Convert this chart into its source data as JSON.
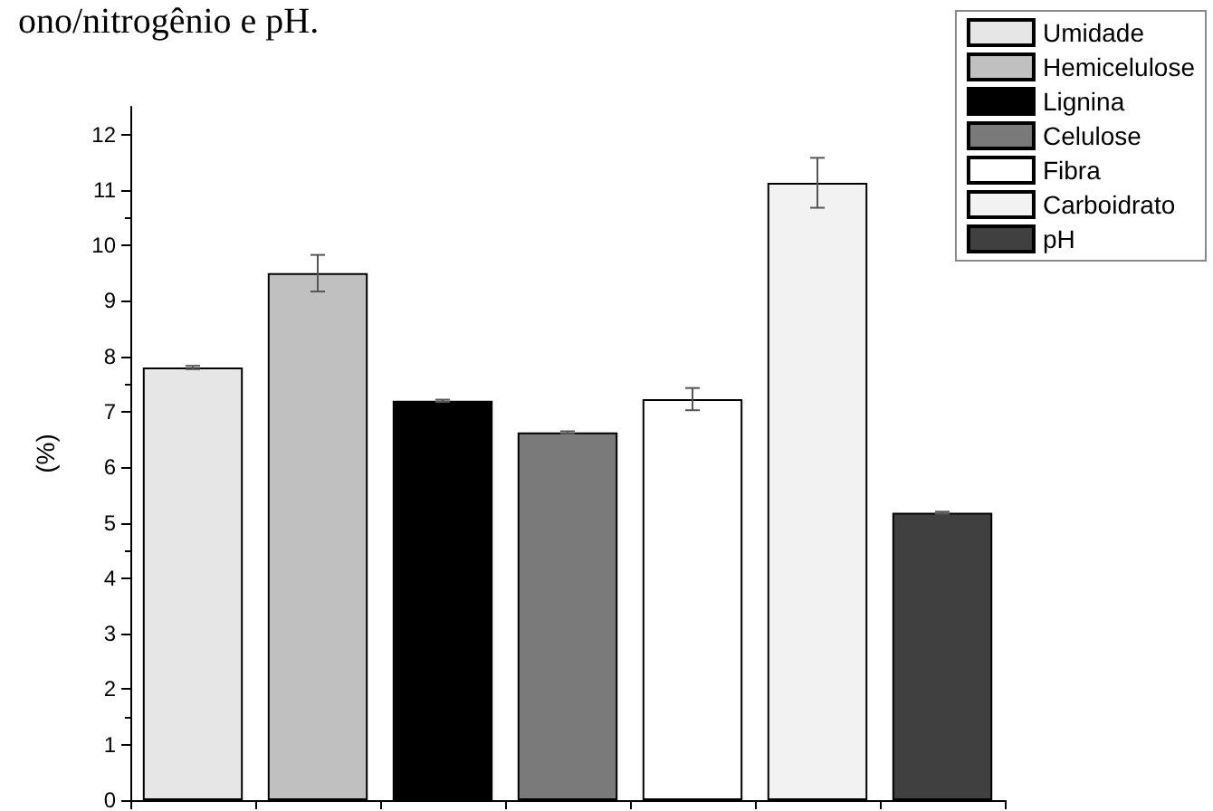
{
  "chart_data": {
    "type": "bar",
    "ylabel": "(%)",
    "annotations": [
      "ono/nitrogênio e pH."
    ],
    "categories": [
      null,
      null,
      null,
      null,
      null,
      null,
      null
    ],
    "series": [
      {
        "name": "Umidade",
        "color": "#e6e6e6",
        "values": [
          7.8,
          null,
          null,
          null,
          null,
          null,
          null
        ],
        "errors": [
          0.03,
          null,
          null,
          null,
          null,
          null,
          null
        ]
      },
      {
        "name": "Hemicelulose",
        "color": "#c0c0c0",
        "values": [
          null,
          9.5,
          null,
          null,
          null,
          null,
          null
        ],
        "errors": [
          null,
          0.33,
          null,
          null,
          null,
          null,
          null
        ]
      },
      {
        "name": "Lignina",
        "color": "#000000",
        "values": [
          null,
          null,
          7.2,
          null,
          null,
          null,
          null
        ],
        "errors": [
          null,
          null,
          0.02,
          null,
          null,
          null,
          null
        ]
      },
      {
        "name": "Celulose",
        "color": "#7a7a7a",
        "values": [
          null,
          null,
          null,
          6.63,
          null,
          null,
          null
        ],
        "errors": [
          null,
          null,
          null,
          0.02,
          null,
          null,
          null
        ]
      },
      {
        "name": "Fibra",
        "color": "#ffffff",
        "values": [
          null,
          null,
          null,
          null,
          7.23,
          null,
          null
        ],
        "errors": [
          null,
          null,
          null,
          null,
          0.2,
          null,
          null
        ]
      },
      {
        "name": "Carboidrato",
        "color": "#f2f2f2",
        "values": [
          null,
          null,
          null,
          null,
          null,
          11.13,
          null
        ],
        "errors": [
          null,
          null,
          null,
          null,
          null,
          0.45,
          null
        ]
      },
      {
        "name": "pH",
        "color": "#404040",
        "values": [
          null,
          null,
          null,
          null,
          null,
          null,
          5.18
        ],
        "errors": [
          null,
          null,
          null,
          null,
          null,
          null,
          0.02
        ]
      }
    ],
    "ylim": [
      0,
      12.5
    ],
    "yticks": [
      0,
      1,
      2,
      3,
      4,
      5,
      6,
      7,
      8,
      9,
      10,
      11,
      12
    ],
    "grid": false,
    "legend": "top right",
    "tick_labels": "y"
  }
}
